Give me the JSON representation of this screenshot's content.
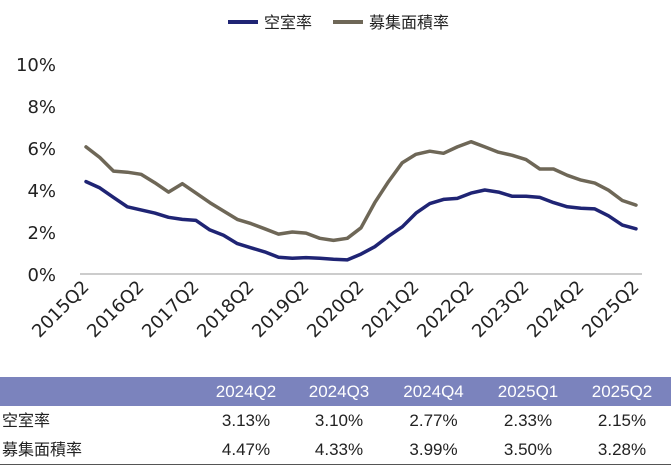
{
  "chart_data": {
    "type": "line",
    "legend_position": "top",
    "grid": false,
    "y_tick_labels": [
      "0%",
      "2%",
      "4%",
      "6%",
      "8%",
      "10%"
    ],
    "ylim": [
      0,
      10
    ],
    "x_tick_labels": [
      "2015Q2",
      "2016Q2",
      "2017Q2",
      "2018Q2",
      "2019Q2",
      "2020Q2",
      "2021Q2",
      "2022Q2",
      "2023Q2",
      "2024Q2",
      "2025Q2"
    ],
    "x": [
      "2015Q2",
      "2015Q3",
      "2015Q4",
      "2016Q1",
      "2016Q2",
      "2016Q3",
      "2016Q4",
      "2017Q1",
      "2017Q2",
      "2017Q3",
      "2017Q4",
      "2018Q1",
      "2018Q2",
      "2018Q3",
      "2018Q4",
      "2019Q1",
      "2019Q2",
      "2019Q3",
      "2019Q4",
      "2020Q1",
      "2020Q2",
      "2020Q3",
      "2020Q4",
      "2021Q1",
      "2021Q2",
      "2021Q3",
      "2021Q4",
      "2022Q1",
      "2022Q2",
      "2022Q3",
      "2022Q4",
      "2023Q1",
      "2023Q2",
      "2023Q3",
      "2023Q4",
      "2024Q1",
      "2024Q2",
      "2024Q3",
      "2024Q4",
      "2025Q1",
      "2025Q2"
    ],
    "series": [
      {
        "name": "空室率",
        "color": "#1f2474",
        "values": [
          4.4,
          4.1,
          3.65,
          3.2,
          3.05,
          2.9,
          2.7,
          2.6,
          2.55,
          2.1,
          1.85,
          1.45,
          1.25,
          1.05,
          0.8,
          0.75,
          0.78,
          0.75,
          0.7,
          0.67,
          0.95,
          1.3,
          1.8,
          2.25,
          2.9,
          3.35,
          3.55,
          3.6,
          3.85,
          4.0,
          3.9,
          3.7,
          3.7,
          3.65,
          3.4,
          3.2,
          3.13,
          3.1,
          2.77,
          2.33,
          2.15
        ]
      },
      {
        "name": "募集面積率",
        "color": "#6e6757",
        "values": [
          6.05,
          5.55,
          4.9,
          4.85,
          4.75,
          4.35,
          3.9,
          4.3,
          3.85,
          3.4,
          3.0,
          2.6,
          2.4,
          2.15,
          1.9,
          2.0,
          1.95,
          1.7,
          1.6,
          1.7,
          2.2,
          3.4,
          4.4,
          5.3,
          5.7,
          5.85,
          5.75,
          6.05,
          6.3,
          6.05,
          5.8,
          5.65,
          5.45,
          5.0,
          5.0,
          4.7,
          4.47,
          4.33,
          3.99,
          3.5,
          3.28
        ]
      }
    ]
  },
  "table": {
    "headers": [
      "2024Q2",
      "2024Q3",
      "2024Q4",
      "2025Q1",
      "2025Q2"
    ],
    "rows": [
      {
        "label": "空室率",
        "values": [
          "3.13%",
          "3.10%",
          "2.77%",
          "2.33%",
          "2.15%"
        ]
      },
      {
        "label": "募集面積率",
        "values": [
          "4.47%",
          "4.33%",
          "3.99%",
          "3.50%",
          "3.28%"
        ]
      }
    ],
    "header_color": "#7b83bd"
  }
}
